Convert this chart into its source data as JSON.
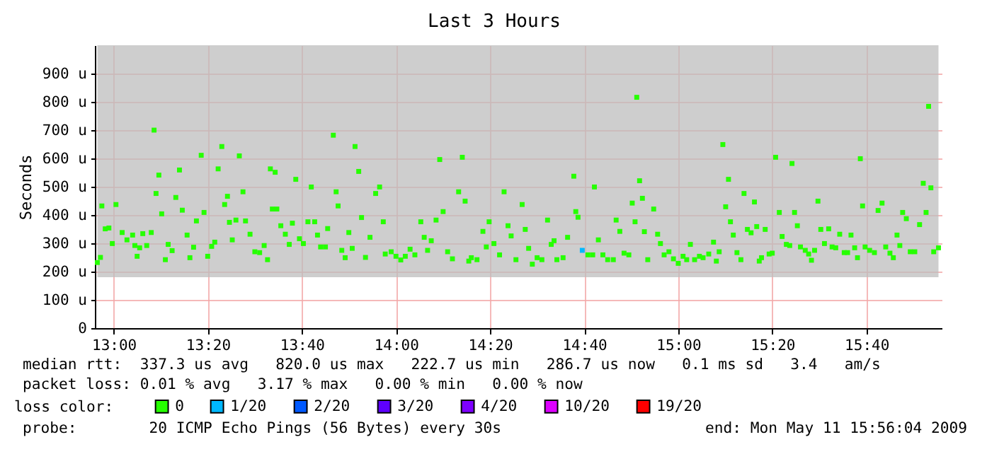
{
  "chart_data": {
    "type": "scatter",
    "title": "Last 3 Hours",
    "ylabel": "Seconds",
    "legend_title": "loss color:",
    "legend": "bottom",
    "marker": "square",
    "grid": true,
    "xlim": [
      12.9333,
      15.9333
    ],
    "xticks": [
      {
        "value": 13,
        "label": "13:00"
      },
      {
        "value": 13.3333,
        "label": "13:20"
      },
      {
        "value": 13.6667,
        "label": "13:40"
      },
      {
        "value": 14,
        "label": "14:00"
      },
      {
        "value": 14.3333,
        "label": "14:20"
      },
      {
        "value": 14.6667,
        "label": "14:40"
      },
      {
        "value": 15,
        "label": "15:00"
      },
      {
        "value": 15.3333,
        "label": "15:20"
      },
      {
        "value": 15.6667,
        "label": "15:40"
      }
    ],
    "ylim": [
      0,
      1000
    ],
    "yticks": [
      0,
      {
        "value": 100,
        "label": "100 u"
      },
      {
        "value": 200,
        "label": "200 u"
      },
      {
        "value": 300,
        "label": "300 u"
      },
      {
        "value": 400,
        "label": "400 u"
      },
      {
        "value": 500,
        "label": "500 u"
      },
      {
        "value": 600,
        "label": "600 u"
      },
      {
        "value": 700,
        "label": "700 u"
      },
      {
        "value": 800,
        "label": "800 u"
      },
      {
        "value": 900,
        "label": "900 u"
      }
    ],
    "series": [
      {
        "name": "0",
        "color": "#26ff00",
        "x": [
          12.942,
          12.953,
          12.958,
          12.97,
          12.983,
          12.995,
          13.008,
          13.03,
          13.047,
          13.067,
          13.075,
          13.083,
          13.092,
          13.103,
          13.117,
          13.133,
          13.143,
          13.15,
          13.16,
          13.17,
          13.183,
          13.193,
          13.207,
          13.22,
          13.233,
          13.243,
          13.26,
          13.27,
          13.283,
          13.293,
          13.31,
          13.32,
          13.333,
          13.347,
          13.358,
          13.37,
          13.383,
          13.393,
          13.403,
          13.41,
          13.42,
          13.433,
          13.445,
          13.458,
          13.467,
          13.483,
          13.5,
          13.517,
          13.533,
          13.545,
          13.555,
          13.562,
          13.572,
          13.578,
          13.592,
          13.608,
          13.622,
          13.633,
          13.645,
          13.658,
          13.672,
          13.688,
          13.7,
          13.712,
          13.722,
          13.733,
          13.75,
          13.758,
          13.778,
          13.788,
          13.795,
          13.808,
          13.82,
          13.833,
          13.845,
          13.855,
          13.868,
          13.878,
          13.892,
          13.908,
          13.928,
          13.942,
          13.955,
          13.962,
          13.983,
          14.0,
          14.017,
          14.033,
          14.05,
          14.067,
          14.088,
          14.1,
          14.112,
          14.125,
          14.142,
          14.155,
          14.167,
          14.183,
          14.2,
          14.222,
          14.235,
          14.245,
          14.258,
          14.267,
          14.287,
          14.308,
          14.32,
          14.33,
          14.347,
          14.367,
          14.383,
          14.397,
          14.408,
          14.425,
          14.447,
          14.458,
          14.47,
          14.483,
          14.5,
          14.517,
          14.537,
          14.55,
          14.56,
          14.57,
          14.592,
          14.608,
          14.63,
          14.637,
          14.645,
          14.68,
          14.697,
          14.703,
          14.717,
          14.733,
          14.75,
          14.77,
          14.78,
          14.793,
          14.808,
          14.825,
          14.837,
          14.847,
          14.853,
          14.863,
          14.873,
          14.88,
          14.892,
          14.913,
          14.927,
          14.937,
          14.95,
          14.967,
          14.983,
          15.0,
          15.017,
          15.03,
          15.043,
          15.058,
          15.075,
          15.088,
          15.108,
          15.125,
          15.135,
          15.145,
          15.158,
          15.168,
          15.178,
          15.185,
          15.195,
          15.208,
          15.222,
          15.233,
          15.245,
          15.258,
          15.27,
          15.278,
          15.287,
          15.295,
          15.308,
          15.322,
          15.333,
          15.345,
          15.358,
          15.368,
          15.383,
          15.395,
          15.403,
          15.412,
          15.422,
          15.433,
          15.45,
          15.462,
          15.472,
          15.483,
          15.495,
          15.505,
          15.518,
          15.533,
          15.545,
          15.558,
          15.572,
          15.588,
          15.6,
          15.612,
          15.625,
          15.635,
          15.645,
          15.653,
          15.662,
          15.678,
          15.695,
          15.708,
          15.722,
          15.735,
          15.75,
          15.762,
          15.775,
          15.785,
          15.795,
          15.808,
          15.822,
          15.838,
          15.855,
          15.868,
          15.878,
          15.887,
          15.895,
          15.905,
          15.922
        ],
        "values": [
          232,
          250,
          432,
          351,
          354,
          299,
          437,
          338,
          312,
          329,
          292,
          254,
          284,
          334,
          292,
          338,
          700,
          476,
          541,
          404,
          242,
          296,
          274,
          462,
          559,
          417,
          329,
          249,
          286,
          379,
          611,
          409,
          254,
          289,
          304,
          563,
          642,
          437,
          466,
          374,
          312,
          382,
          609,
          482,
          379,
          332,
          270,
          267,
          292,
          242,
          563,
          421,
          551,
          421,
          362,
          332,
          296,
          371,
          526,
          316,
          299,
          376,
          499,
          376,
          329,
          287,
          287,
          352,
          682,
          482,
          432,
          275,
          249,
          338,
          282,
          642,
          554,
          391,
          250,
          321,
          476,
          499,
          376,
          262,
          270,
          254,
          241,
          254,
          279,
          259,
          376,
          321,
          275,
          309,
          382,
          596,
          412,
          270,
          245,
          482,
          604,
          449,
          237,
          249,
          242,
          342,
          287,
          376,
          299,
          259,
          482,
          362,
          326,
          242,
          437,
          349,
          282,
          226,
          249,
          242,
          382,
          296,
          309,
          242,
          249,
          321,
          537,
          412,
          392,
          259,
          259,
          499,
          312,
          259,
          242,
          242,
          382,
          342,
          265,
          259,
          442,
          376,
          816,
          521,
          459,
          341,
          242,
          421,
          332,
          299,
          259,
          270,
          245,
          229,
          254,
          242,
          296,
          242,
          254,
          249,
          262,
          304,
          237,
          270,
          649,
          429,
          526,
          376,
          329,
          267,
          242,
          476,
          349,
          337,
          446,
          359,
          237,
          249,
          349,
          262,
          265,
          604,
          409,
          324,
          296,
          292,
          582,
          409,
          362,
          287,
          275,
          262,
          240,
          275,
          449,
          349,
          299,
          351,
          287,
          284,
          332,
          267,
          267,
          329,
          284,
          249,
          599,
          432,
          287,
          275,
          267,
          416,
          442,
          287,
          265,
          249,
          329,
          292,
          409,
          387,
          270,
          270,
          366,
          512,
          409,
          784,
          496,
          270,
          284
        ],
        "lower": [
          180,
          180,
          180,
          180,
          180,
          180,
          180,
          180,
          180,
          180,
          180,
          180,
          180,
          180,
          180,
          180,
          180,
          180,
          180,
          180,
          180,
          180,
          180,
          180,
          180,
          180,
          180,
          180,
          180,
          180,
          180,
          180,
          180,
          180,
          180,
          180,
          180,
          180,
          180,
          180,
          180,
          180,
          180,
          180,
          180,
          180,
          180,
          180,
          180,
          180,
          180,
          180,
          180,
          180,
          180,
          180,
          180,
          180,
          180,
          180,
          180,
          180,
          180,
          180,
          180,
          180,
          180,
          180,
          180,
          180,
          180,
          180,
          180,
          180,
          180,
          180,
          180,
          180,
          180,
          180,
          180,
          180,
          180,
          180,
          180,
          180,
          180,
          180,
          180,
          180,
          180,
          180,
          180,
          180,
          180,
          180,
          180,
          180,
          180,
          180,
          180,
          180,
          180,
          180,
          180,
          180,
          180,
          180,
          180,
          180,
          180,
          180,
          180,
          180,
          180,
          180,
          180,
          180,
          180,
          180,
          180,
          180,
          180,
          180,
          180,
          180,
          180,
          180,
          180,
          180,
          180,
          180,
          180,
          180,
          180,
          180,
          180,
          180,
          180,
          180,
          180,
          180,
          180,
          180,
          180,
          180,
          180,
          180,
          180,
          180,
          180,
          180,
          180,
          180,
          180,
          180,
          180,
          180,
          180,
          180,
          180,
          180,
          180,
          180,
          180,
          180,
          180,
          180,
          180,
          180,
          180,
          180,
          180,
          180,
          180,
          180,
          180,
          180,
          180,
          180,
          180,
          180,
          180,
          180,
          180,
          180,
          180,
          180,
          180,
          180,
          180,
          180,
          180,
          180,
          180,
          180,
          180,
          180,
          180,
          180,
          180,
          180,
          180,
          180,
          180,
          180,
          180,
          180,
          180,
          180,
          180,
          180,
          180,
          180,
          180,
          180,
          180,
          180,
          180,
          180,
          180,
          180,
          180,
          180,
          180,
          180,
          180,
          180,
          180
        ],
        "upper": [
          1000,
          1000,
          1000,
          1000,
          1000,
          1000,
          1000,
          1000,
          1000,
          1000,
          1000,
          1000,
          1000,
          1000,
          1000,
          1000,
          1000,
          1000,
          1000,
          1000,
          1000,
          1000,
          1000,
          1000,
          1000,
          1000,
          1000,
          1000,
          1000,
          1000,
          1000,
          1000,
          1000,
          1000,
          1000,
          1000,
          1000,
          1000,
          1000,
          1000,
          1000,
          1000,
          1000,
          1000,
          1000,
          1000,
          1000,
          1000,
          1000,
          1000,
          1000,
          1000,
          1000,
          1000,
          1000,
          1000,
          1000,
          1000,
          1000,
          1000,
          1000,
          1000,
          1000,
          1000,
          1000,
          1000,
          1000,
          1000,
          1000,
          1000,
          1000,
          1000,
          1000,
          1000,
          1000,
          1000,
          1000,
          1000,
          1000,
          1000,
          1000,
          1000,
          1000,
          1000,
          1000,
          1000,
          1000,
          1000,
          1000,
          1000,
          1000,
          1000,
          1000,
          1000,
          1000,
          1000,
          1000,
          1000,
          1000,
          1000,
          1000,
          1000,
          1000,
          1000,
          1000,
          1000,
          1000,
          1000,
          1000,
          1000,
          1000,
          1000,
          1000,
          1000,
          1000,
          1000,
          1000,
          1000,
          1000,
          1000,
          1000,
          1000,
          1000,
          1000,
          1000,
          1000,
          1000,
          1000,
          1000,
          1000,
          1000,
          1000,
          1000,
          1000,
          1000,
          1000,
          1000,
          1000,
          1000,
          1000,
          1000,
          1000,
          1000,
          1000,
          1000,
          1000,
          1000,
          1000,
          1000,
          1000,
          1000,
          1000,
          1000,
          1000,
          1000,
          1000,
          1000,
          1000,
          1000,
          1000,
          1000,
          1000,
          1000,
          1000,
          1000,
          1000,
          1000,
          1000,
          1000,
          1000,
          1000,
          1000,
          1000,
          1000,
          1000,
          1000,
          1000,
          1000,
          1000,
          1000,
          1000,
          1000,
          1000,
          1000,
          1000,
          1000,
          1000,
          1000,
          1000,
          1000,
          1000,
          1000,
          1000,
          1000,
          1000,
          1000,
          1000,
          1000,
          1000,
          1000,
          1000,
          1000,
          1000,
          1000,
          1000,
          1000,
          1000,
          1000,
          1000,
          1000,
          1000,
          1000,
          1000,
          1000,
          1000,
          1000,
          1000,
          1000,
          1000,
          1000,
          1000,
          1000,
          1000,
          1000,
          1000,
          1000,
          1000,
          1000,
          1000
        ]
      },
      {
        "name": "1/20",
        "color": "#00b8ff",
        "x": [
          14.66
        ],
        "values": [
          275
        ]
      },
      {
        "name": "2/20",
        "color": "#0059ff"
      },
      {
        "name": "3/20",
        "color": "#5e00ff"
      },
      {
        "name": "4/20",
        "color": "#7e00ff"
      },
      {
        "name": "10/20",
        "color": "#dd00ff"
      },
      {
        "name": "19/20",
        "color": "#ff0000"
      }
    ],
    "annotations": [
      "median rtt:  337.3 us avg   820.0 us max   222.7 us min   286.7 us now   0.1 ms sd   3.4   am/s",
      "packet loss: 0.01 % avg   3.17 % max   0.00 % min   0.00 % now",
      "probe:        20 ICMP Echo Pings (56 Bytes) every 30s",
      "end: Mon May 11 15:56:04 2009"
    ]
  }
}
